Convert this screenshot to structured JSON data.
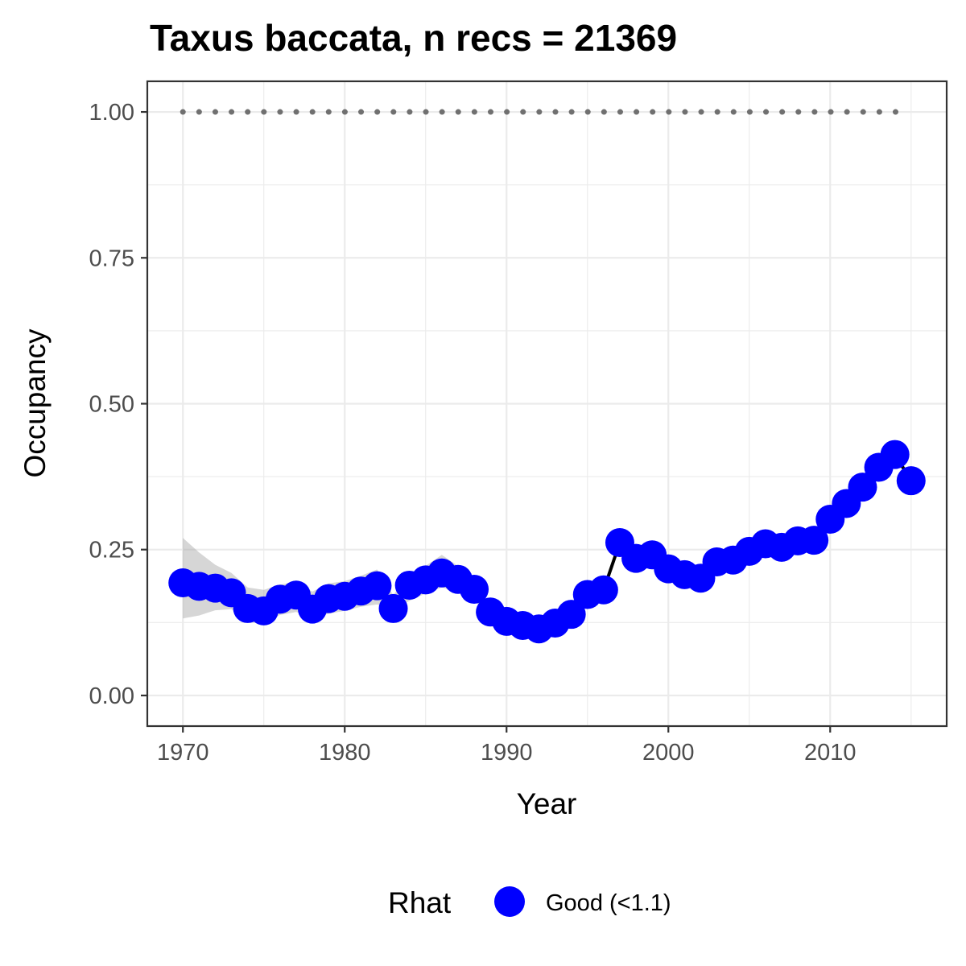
{
  "chart_data": {
    "type": "line",
    "title": "Taxus baccata, n recs = 21369",
    "xlabel": "Year",
    "ylabel": "Occupancy",
    "xlim": [
      1967.8,
      2017.2
    ],
    "ylim": [
      -0.0525,
      1.0525
    ],
    "x_ticks": [
      1970,
      1980,
      1990,
      2000,
      2010
    ],
    "x_tick_labels": [
      "1970",
      "1980",
      "1990",
      "2000",
      "2010"
    ],
    "y_ticks": [
      0,
      0.25,
      0.5,
      0.75,
      1.0
    ],
    "y_tick_labels": [
      "0.00",
      "0.25",
      "0.50",
      "0.75",
      "1.00"
    ],
    "grid": true,
    "legend": {
      "position": "bottom",
      "title": "Rhat",
      "entries": [
        {
          "label": "Good (<1.1)",
          "color": "#0000FF"
        }
      ]
    },
    "series": [
      {
        "name": "Good (<1.1)",
        "color": "#0000FF",
        "x": [
          1970,
          1971,
          1972,
          1973,
          1974,
          1975,
          1976,
          1977,
          1978,
          1979,
          1980,
          1981,
          1982,
          1983,
          1984,
          1985,
          1986,
          1987,
          1988,
          1989,
          1990,
          1991,
          1992,
          1993,
          1994,
          1995,
          1996,
          1997,
          1998,
          1999,
          2000,
          2001,
          2002,
          2003,
          2004,
          2005,
          2006,
          2007,
          2008,
          2009,
          2010,
          2011,
          2012,
          2013,
          2014,
          2015
        ],
        "values": [
          0.193,
          0.187,
          0.184,
          0.176,
          0.149,
          0.145,
          0.165,
          0.172,
          0.148,
          0.166,
          0.17,
          0.179,
          0.188,
          0.149,
          0.189,
          0.198,
          0.21,
          0.199,
          0.182,
          0.143,
          0.127,
          0.12,
          0.114,
          0.124,
          0.139,
          0.173,
          0.181,
          0.262,
          0.235,
          0.241,
          0.217,
          0.207,
          0.201,
          0.229,
          0.232,
          0.247,
          0.26,
          0.254,
          0.265,
          0.266,
          0.302,
          0.329,
          0.357,
          0.391,
          0.413,
          0.368
        ],
        "ci_lower": [
          0.132,
          0.137,
          0.146,
          0.148,
          0.126,
          0.123,
          0.138,
          0.143,
          0.134,
          0.14,
          0.145,
          0.152,
          0.156,
          0.148,
          0.162,
          0.175,
          0.185,
          0.178,
          0.163,
          0.135,
          0.12,
          0.113,
          0.108,
          0.118,
          0.132,
          0.164,
          0.174,
          0.255,
          0.229,
          0.236,
          0.212,
          0.202,
          0.196,
          0.224,
          0.227,
          0.242,
          0.255,
          0.249,
          0.26,
          0.261,
          0.296,
          0.323,
          0.351,
          0.385,
          0.407,
          0.362
        ],
        "ci_upper": [
          0.27,
          0.245,
          0.224,
          0.21,
          0.185,
          0.181,
          0.19,
          0.195,
          0.178,
          0.192,
          0.196,
          0.205,
          0.216,
          0.172,
          0.21,
          0.222,
          0.241,
          0.222,
          0.204,
          0.155,
          0.136,
          0.128,
          0.121,
          0.131,
          0.146,
          0.181,
          0.188,
          0.268,
          0.241,
          0.247,
          0.222,
          0.212,
          0.206,
          0.234,
          0.237,
          0.252,
          0.265,
          0.259,
          0.27,
          0.271,
          0.308,
          0.335,
          0.363,
          0.397,
          0.419,
          0.374
        ]
      },
      {
        "name": "",
        "style": "dotted",
        "color": "#707070",
        "x": [
          1970,
          2015
        ],
        "values": [
          1.0,
          1.0
        ]
      }
    ]
  }
}
